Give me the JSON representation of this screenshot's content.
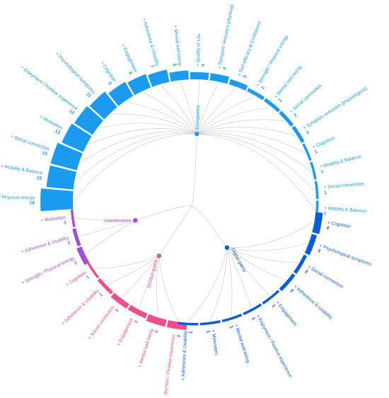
{
  "chart_data": {
    "type": "radial-dendrogram",
    "root": "",
    "groups": [
      {
        "name": "Exergames",
        "color": "#1a9bf0",
        "items": [
          {
            "label": "Mobility & Balance",
            "value": 1
          },
          {
            "label": "Social connection",
            "value": 1
          },
          {
            "label": "Mobility & Balance",
            "value": 1
          },
          {
            "label": "Cognition",
            "value": 1
          },
          {
            "label": "Symptom reduction (physiological)",
            "value": 2
          },
          {
            "label": "Social connection",
            "value": 2
          },
          {
            "label": "Mental well-being",
            "value": 2
          },
          {
            "label": "Strength / Physical energy",
            "value": 2
          },
          {
            "label": "Self-efficacy & Confidence",
            "value": 3
          },
          {
            "label": "Symptom reduction (physical)",
            "value": 4
          },
          {
            "label": "Quality of Life",
            "value": 4
          },
          {
            "label": "Mental well-being",
            "value": 5
          },
          {
            "label": "Adherence & Usability",
            "value": 7
          },
          {
            "label": "Engagement",
            "value": 8
          },
          {
            "label": "Cognition",
            "value": 9
          },
          {
            "label": "Psychological symptoms",
            "value": 11
          },
          {
            "label": "Enjoyment / Positive experience",
            "value": 12
          },
          {
            "label": "Motivation",
            "value": 13
          },
          {
            "label": "Social connection",
            "value": 15
          },
          {
            "label": "Mobility & Balance",
            "value": 15
          },
          {
            "label": "Strength / Physical energy",
            "value": 18
          }
        ]
      },
      {
        "name": "Gamification",
        "color": "#a050d8",
        "items": [
          {
            "label": "Motivation",
            "value": 1
          },
          {
            "label": "Adherence & Usability",
            "value": 2
          },
          {
            "label": "Strength / Physical energy",
            "value": 3
          }
        ]
      },
      {
        "name": "Serious game",
        "color": "#ef4e8e",
        "items": [
          {
            "label": "Cognition",
            "value": 1
          },
          {
            "label": "Adherence & Usability",
            "value": 2
          },
          {
            "label": "Social connection",
            "value": 3
          },
          {
            "label": "Engagement",
            "value": 3
          },
          {
            "label": "Mental well-being",
            "value": 4
          },
          {
            "label": "Enjoyment / Positive experience",
            "value": 4
          }
        ]
      },
      {
        "name": "Digital game",
        "color": "#0b5ed7",
        "items": [
          {
            "label": "Adherence & Usability",
            "value": 1
          },
          {
            "label": "Motivation",
            "value": 1
          },
          {
            "label": "Mental well-being",
            "value": 1
          },
          {
            "label": "Enjoyment / Positive experience",
            "value": 1
          },
          {
            "label": "Engagement",
            "value": 1
          },
          {
            "label": "Adherence & Usability",
            "value": 2
          },
          {
            "label": "Social connection",
            "value": 2
          },
          {
            "label": "Psychological symptoms",
            "value": 3
          },
          {
            "label": "Cognition",
            "value": 4
          }
        ]
      }
    ]
  }
}
